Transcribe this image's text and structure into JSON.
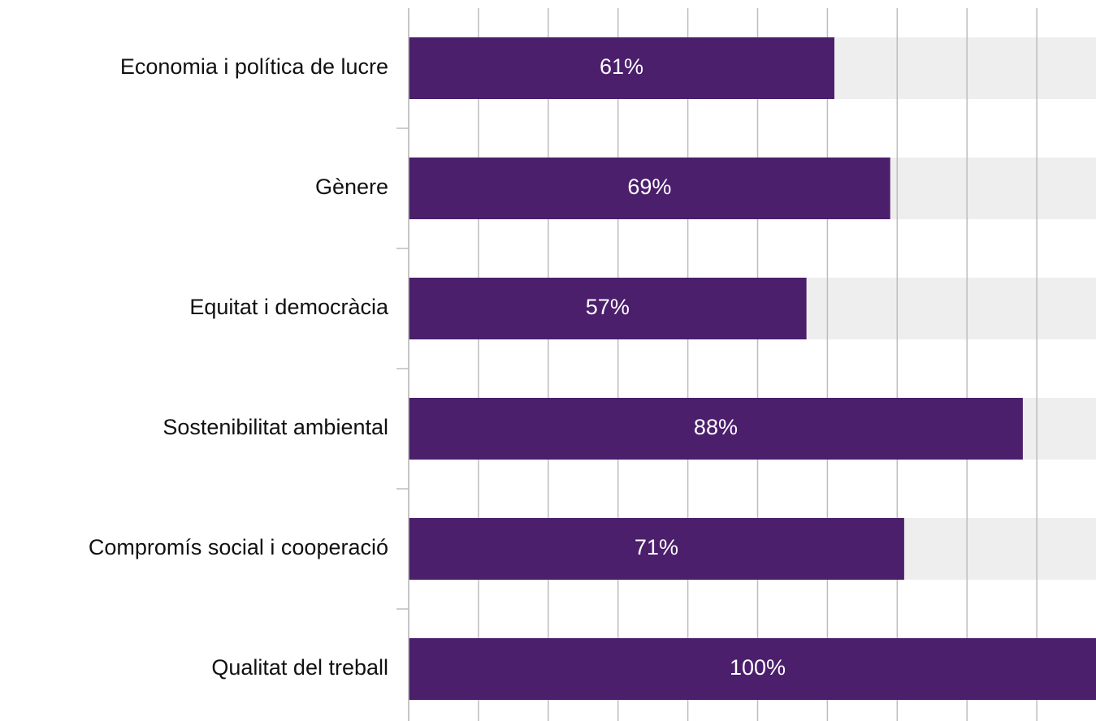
{
  "chart_data": {
    "type": "hbar",
    "categories": [
      "Economia i política de lucre",
      "Gènere",
      "Equitat i democràcia",
      "Sostenibilitat ambiental",
      "Compromís social i cooperació",
      "Qualitat del treball"
    ],
    "values": [
      61,
      69,
      57,
      88,
      71,
      100
    ],
    "value_labels": [
      "61%",
      "69%",
      "57%",
      "88%",
      "71%",
      "100%"
    ],
    "color": "#4b1f6b",
    "track_color": "#eeeeee",
    "xlim": [
      0,
      100
    ],
    "xticks": [
      0,
      10,
      20,
      30,
      40,
      50,
      60,
      70,
      80,
      90,
      100
    ],
    "grid": true
  }
}
